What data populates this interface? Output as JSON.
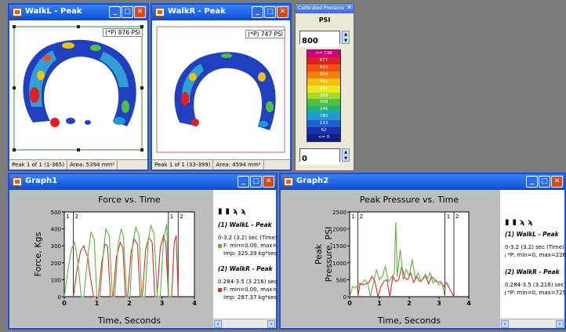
{
  "walkL": {
    "title": "WalkL - Peak",
    "badge": "(*P) 876 PSI",
    "status_range": "Peak 1 of 1 (1-365)",
    "status_area": "Area: 5394 mm²"
  },
  "walkR": {
    "title": "WalkR - Peak",
    "badge": "(*P) 747 PSI",
    "status_range": "Peak 1 of 1 (33-399)",
    "status_area": "Area: 4594 mm²"
  },
  "calibration": {
    "title": "Calibrated Pressure",
    "unit": "PSI",
    "max_value": "800",
    "min_value": "0",
    "scale_labels": [
      ">= 738",
      "677",
      "615",
      "554",
      "492",
      "431",
      "369",
      "308",
      "246",
      "185",
      "123",
      "62",
      "<= 0"
    ],
    "scale_colors": [
      "#d4007a",
      "#e02020",
      "#f05010",
      "#f08010",
      "#f0c010",
      "#e8e820",
      "#a8d830",
      "#50c040",
      "#20b088",
      "#2098d8",
      "#2060d0",
      "#1830b0",
      "#102080"
    ]
  },
  "graph1": {
    "title": "Graph1",
    "legend_1_header": "(1) WalkL - Peak",
    "legend_1_line1": "0-3.2 (3.2) sec (Time)",
    "legend_1_line2": "F: min=0.00, max=",
    "legend_1_line3": "Imp: 325.39 kg*sec",
    "legend_2_header": "(2) WalkR - Peak",
    "legend_2_line1": "0.284-3.5 (3.216) sec (",
    "legend_2_line2": "F: min=0.00, max=",
    "legend_2_line3": "Imp: 287.37 kg*sec"
  },
  "graph2": {
    "title": "Graph2",
    "legend_1_header": "(1) WalkL - Peak",
    "legend_1_line1": "0-3.2 (3.2) sec (Time)",
    "legend_1_line2": "*P: min=0, max=226",
    "legend_2_header": "(2) WalkR - Peak",
    "legend_2_line1": "0.284-3.5 (3.216) sec (T",
    "legend_2_line2": "*P: min=0, max=725"
  },
  "chart_data": [
    {
      "type": "line",
      "title": "Force vs. Time",
      "xlabel": "Time, Seconds",
      "ylabel": "Force, Kgs",
      "xlim": [
        0,
        4
      ],
      "ylim": [
        0,
        500
      ],
      "xticks": [
        "0",
        "1",
        "2",
        "3",
        "4"
      ],
      "yticks": [
        "0",
        "100",
        "200",
        "300",
        "400",
        "500"
      ],
      "marker_labels": [
        "1",
        "2",
        "1",
        "2"
      ],
      "marker_x": [
        0,
        0.28,
        3.2,
        3.5
      ],
      "series": [
        {
          "color": "#d03030",
          "x": [
            0.28,
            0.4,
            0.5,
            0.6,
            0.65,
            0.72,
            0.78,
            0.9,
            1.05,
            1.15,
            1.25,
            1.33,
            1.42,
            1.5,
            1.6,
            1.72,
            1.8,
            1.88,
            1.95,
            2.05,
            2.15,
            2.25,
            2.33,
            2.4,
            2.5,
            2.6,
            2.7,
            2.78,
            2.85,
            2.95,
            3.05,
            3.12,
            3.2,
            3.3,
            3.38,
            3.44,
            3.5
          ],
          "y": [
            0,
            170,
            270,
            300,
            265,
            240,
            140,
            0,
            0,
            200,
            310,
            300,
            0,
            0,
            230,
            320,
            290,
            0,
            0,
            260,
            340,
            310,
            0,
            0,
            280,
            350,
            320,
            0,
            0,
            290,
            360,
            310,
            0,
            0,
            320,
            360,
            0
          ]
        },
        {
          "color": "#60b040",
          "x": [
            0,
            0.1,
            0.22,
            0.32,
            0.42,
            0.52,
            0.6,
            0.72,
            0.82,
            0.92,
            1.0,
            1.1,
            1.2,
            1.28,
            1.38,
            1.48,
            1.55,
            1.65,
            1.75,
            1.82,
            1.92,
            2.02,
            2.1,
            2.2,
            2.3,
            2.38,
            2.48,
            2.58,
            2.66,
            2.76,
            2.86,
            2.95,
            3.05,
            3.15,
            3.2
          ],
          "y": [
            0,
            140,
            280,
            320,
            200,
            0,
            0,
            230,
            380,
            340,
            0,
            0,
            260,
            400,
            360,
            0,
            0,
            300,
            400,
            350,
            0,
            0,
            310,
            410,
            360,
            0,
            0,
            330,
            420,
            370,
            0,
            0,
            340,
            430,
            0
          ]
        }
      ]
    },
    {
      "type": "line",
      "title": "Peak Pressure vs. Time",
      "xlabel": "Time, Seconds",
      "ylabel": "Peak Pressure, PSI",
      "xlim": [
        0,
        4
      ],
      "ylim": [
        0,
        2500
      ],
      "xticks": [
        "0",
        "1",
        "2",
        "3",
        "4"
      ],
      "yticks": [
        "0",
        "500",
        "1000",
        "1500",
        "2000",
        "2500"
      ],
      "marker_labels": [
        "1",
        "2",
        "1",
        "2"
      ],
      "marker_x": [
        0,
        0.28,
        3.2,
        3.5
      ],
      "series": [
        {
          "color": "#d03030",
          "x": [
            0.28,
            0.35,
            0.45,
            0.55,
            0.65,
            0.75,
            0.85,
            0.95,
            1.05,
            1.15,
            1.25,
            1.35,
            1.45,
            1.55,
            1.65,
            1.75,
            1.85,
            1.95,
            2.05,
            2.15,
            2.25,
            2.35,
            2.45,
            2.55,
            2.65,
            2.75,
            2.85,
            2.95,
            3.05,
            3.15,
            3.25,
            3.35,
            3.5
          ],
          "y": [
            0,
            400,
            350,
            380,
            420,
            600,
            450,
            0,
            300,
            450,
            500,
            0,
            600,
            450,
            500,
            900,
            550,
            500,
            700,
            420,
            600,
            450,
            500,
            650,
            380,
            600,
            500,
            420,
            450,
            300,
            420,
            250,
            0
          ]
        },
        {
          "color": "#60b040",
          "x": [
            0,
            0.1,
            0.2,
            0.3,
            0.4,
            0.5,
            0.6,
            0.7,
            0.8,
            0.9,
            1.0,
            1.1,
            1.2,
            1.3,
            1.4,
            1.5,
            1.55,
            1.6,
            1.7,
            1.8,
            1.9,
            2.0,
            2.1,
            2.2,
            2.3,
            2.4,
            2.5,
            2.6,
            2.7,
            2.8,
            2.9,
            3.0,
            3.1,
            3.2
          ],
          "y": [
            0,
            300,
            250,
            380,
            350,
            500,
            420,
            0,
            400,
            800,
            500,
            600,
            900,
            450,
            550,
            700,
            2200,
            600,
            1400,
            500,
            800,
            600,
            1100,
            550,
            700,
            450,
            600,
            500,
            700,
            400,
            500,
            350,
            400,
            0
          ]
        }
      ]
    }
  ]
}
